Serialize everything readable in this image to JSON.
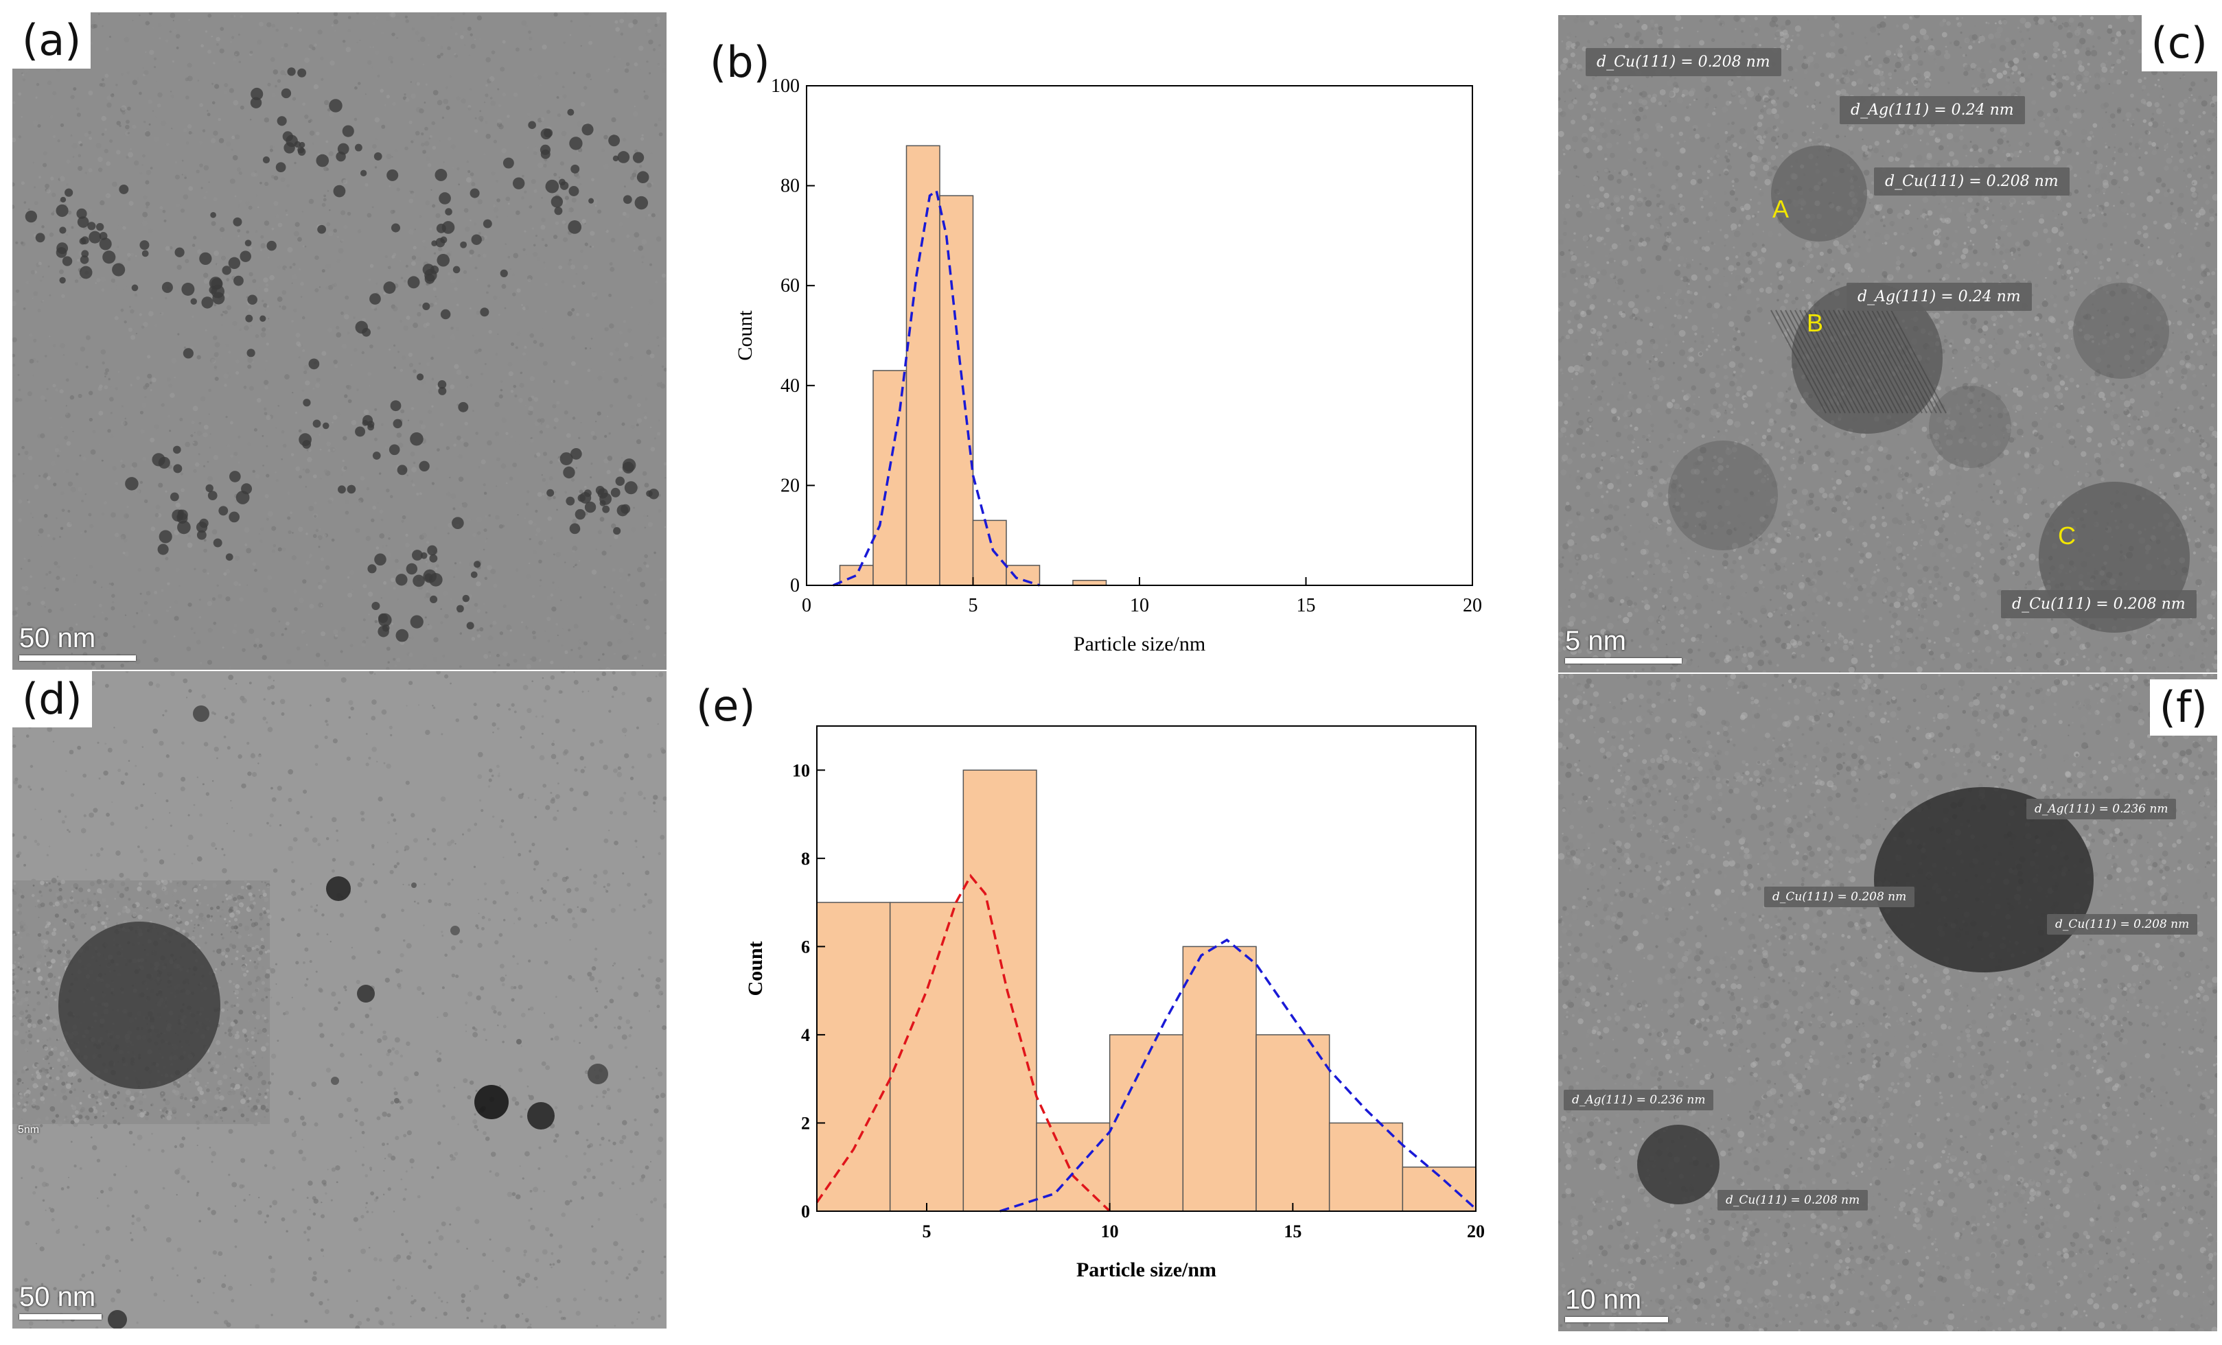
{
  "panels": {
    "a": {
      "label": "(a)",
      "scale": "50 nm"
    },
    "b": {
      "label": "(b)"
    },
    "c": {
      "label": "(c)",
      "scale": "5 nm",
      "tags": [
        "d_Cu(111) = 0.208 nm",
        "d_Ag(111) = 0.24 nm",
        "d_Cu(111) = 0.208 nm",
        "d_Ag(111) = 0.24 nm",
        "d_Cu(111) = 0.208 nm"
      ],
      "letters": [
        "A",
        "B",
        "C"
      ]
    },
    "d": {
      "label": "(d)",
      "scale": "50 nm",
      "inset_scale": "5nm"
    },
    "e": {
      "label": "(e)"
    },
    "f": {
      "label": "(f)",
      "scale": "10 nm",
      "tags": [
        "d_Ag(111) = 0.236 nm",
        "d_Cu(111) = 0.208 nm",
        "d_Cu(111) = 0.208 nm",
        "d_Ag(111) = 0.236 nm",
        "d_Cu(111) = 0.208 nm"
      ]
    }
  },
  "colors": {
    "bar_fill": "#f9c79b",
    "bar_edge": "#555555",
    "fit_blue": "#1a1ad6",
    "fit_red": "#e0151b",
    "label_yellow": "#f2e600"
  },
  "chart_data": [
    {
      "type": "bar",
      "title": "",
      "xlabel": "Particle size/nm",
      "ylabel": "Count",
      "xlim": [
        0,
        20
      ],
      "ylim": [
        0,
        100
      ],
      "xticks": [
        0,
        5,
        10,
        15,
        20
      ],
      "yticks": [
        0,
        20,
        40,
        60,
        80,
        100
      ],
      "bin_width": 1,
      "bins": [
        {
          "x": 1,
          "value": 4
        },
        {
          "x": 2,
          "value": 43
        },
        {
          "x": 3,
          "value": 88
        },
        {
          "x": 4,
          "value": 78
        },
        {
          "x": 5,
          "value": 13
        },
        {
          "x": 6,
          "value": 4
        },
        {
          "x": 8,
          "value": 1
        }
      ],
      "fit": [
        {
          "x": 0.8,
          "y": 0
        },
        {
          "x": 1.5,
          "y": 2
        },
        {
          "x": 2.2,
          "y": 12
        },
        {
          "x": 2.8,
          "y": 35
        },
        {
          "x": 3.3,
          "y": 62
        },
        {
          "x": 3.7,
          "y": 78
        },
        {
          "x": 3.9,
          "y": 79
        },
        {
          "x": 4.2,
          "y": 70
        },
        {
          "x": 4.6,
          "y": 45
        },
        {
          "x": 5.0,
          "y": 22
        },
        {
          "x": 5.6,
          "y": 7
        },
        {
          "x": 6.3,
          "y": 1.5
        },
        {
          "x": 7.0,
          "y": 0
        }
      ],
      "grid": false
    },
    {
      "type": "bar",
      "title": "",
      "xlabel": "Particle size/nm",
      "ylabel": "Count",
      "xlim": [
        2,
        20
      ],
      "ylim": [
        0,
        11
      ],
      "xticks": [
        5,
        10,
        15,
        20
      ],
      "yticks": [
        0,
        2,
        4,
        6,
        8,
        10
      ],
      "bin_width": 2,
      "bins": [
        {
          "x": 2,
          "value": 7
        },
        {
          "x": 4,
          "value": 7
        },
        {
          "x": 6,
          "value": 10
        },
        {
          "x": 8,
          "value": 2
        },
        {
          "x": 10,
          "value": 4
        },
        {
          "x": 12,
          "value": 6
        },
        {
          "x": 14,
          "value": 4
        },
        {
          "x": 16,
          "value": 2
        },
        {
          "x": 18,
          "value": 1
        }
      ],
      "fits": [
        {
          "color": "red",
          "points": [
            {
              "x": 2.0,
              "y": 0.2
            },
            {
              "x": 3.0,
              "y": 1.4
            },
            {
              "x": 4.0,
              "y": 3.0
            },
            {
              "x": 5.0,
              "y": 5.0
            },
            {
              "x": 5.8,
              "y": 7.0
            },
            {
              "x": 6.2,
              "y": 7.6
            },
            {
              "x": 6.6,
              "y": 7.2
            },
            {
              "x": 7.2,
              "y": 5.0
            },
            {
              "x": 8.0,
              "y": 2.6
            },
            {
              "x": 9.0,
              "y": 0.8
            },
            {
              "x": 10.0,
              "y": 0.0
            }
          ]
        },
        {
          "color": "blue",
          "points": [
            {
              "x": 7.0,
              "y": 0.0
            },
            {
              "x": 8.5,
              "y": 0.4
            },
            {
              "x": 10.0,
              "y": 1.8
            },
            {
              "x": 11.5,
              "y": 4.3
            },
            {
              "x": 12.5,
              "y": 5.8
            },
            {
              "x": 13.2,
              "y": 6.15
            },
            {
              "x": 14.0,
              "y": 5.6
            },
            {
              "x": 15.0,
              "y": 4.4
            },
            {
              "x": 16.0,
              "y": 3.2
            },
            {
              "x": 17.0,
              "y": 2.3
            },
            {
              "x": 18.0,
              "y": 1.5
            },
            {
              "x": 19.0,
              "y": 0.8
            },
            {
              "x": 20.0,
              "y": 0.05
            }
          ]
        }
      ],
      "grid": false
    }
  ]
}
